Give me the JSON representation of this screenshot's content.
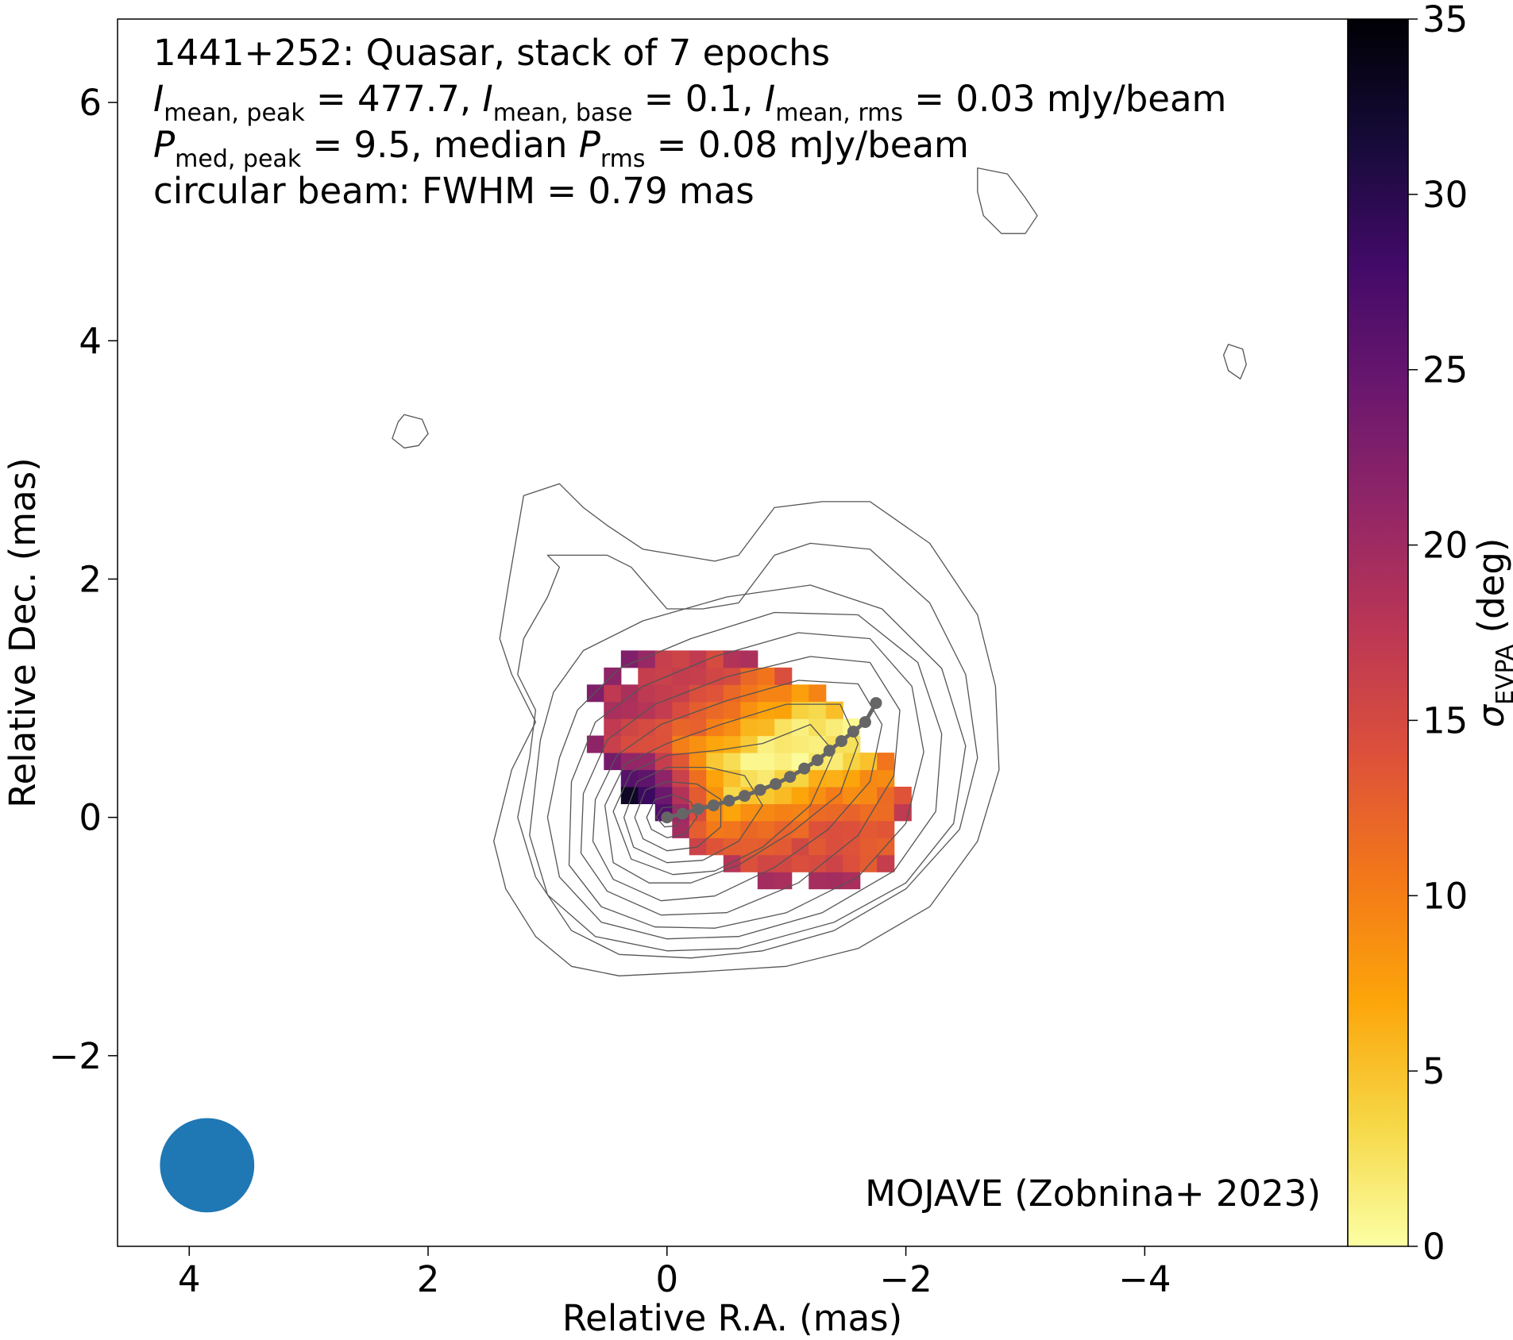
{
  "chart_data": {
    "type": "heatmap",
    "annotation": {
      "line1": "1441+252: Quasar, stack of 7 epochs",
      "line2": {
        "i": "I",
        "sub_peak": "mean, peak",
        "peak_value": " = 477.7, ",
        "sub_base": "mean, base",
        "base_value": " = 0.1, ",
        "sub_rms": "mean, rms",
        "rms_value": " = 0.03 mJy/beam"
      },
      "line3": {
        "p": "P",
        "sub_peak": "med, peak",
        "peak_value": " = 9.5, median ",
        "sub_rms": "rms",
        "rms_value": " = 0.08 mJy/beam"
      },
      "line4": "circular beam: FWHM = 0.79 mas"
    },
    "credit": "MOJAVE (Zobnina+ 2023)",
    "xlabel": "Relative R.A. (mas)",
    "ylabel": "Relative Dec. (mas)",
    "colorbar_label": {
      "symbol": "σ",
      "sub": "EVPA",
      "unit": " (deg)"
    },
    "xlim": [
      4.6,
      -5.7
    ],
    "ylim": [
      -3.6,
      6.7
    ],
    "xticks": [
      {
        "value": 4,
        "label": "4"
      },
      {
        "value": 2,
        "label": "2"
      },
      {
        "value": 0,
        "label": "0"
      },
      {
        "value": -2,
        "label": "−2"
      },
      {
        "value": -4,
        "label": "−4"
      }
    ],
    "yticks": [
      {
        "value": -2,
        "label": "−2"
      },
      {
        "value": 0,
        "label": "0"
      },
      {
        "value": 2,
        "label": "2"
      },
      {
        "value": 4,
        "label": "4"
      },
      {
        "value": 6,
        "label": "6"
      }
    ],
    "colorbar": {
      "colormap": "inferno_r",
      "range": [
        0,
        35
      ],
      "ticks": [
        {
          "value": 0,
          "label": "0"
        },
        {
          "value": 5,
          "label": "5"
        },
        {
          "value": 10,
          "label": "10"
        },
        {
          "value": 15,
          "label": "15"
        },
        {
          "value": 20,
          "label": "20"
        },
        {
          "value": 25,
          "label": "25"
        },
        {
          "value": 30,
          "label": "30"
        },
        {
          "value": 35,
          "label": "35"
        }
      ]
    },
    "beam": {
      "fwhm_mas": 0.79,
      "center": [
        3.85,
        -2.92
      ],
      "color": "#1f77b4"
    },
    "ridgeline": {
      "color": "#666666",
      "points": [
        [
          0.0,
          0.0
        ],
        [
          -0.13,
          0.03
        ],
        [
          -0.26,
          0.07
        ],
        [
          -0.39,
          0.1
        ],
        [
          -0.52,
          0.14
        ],
        [
          -0.65,
          0.18
        ],
        [
          -0.78,
          0.23
        ],
        [
          -0.91,
          0.28
        ],
        [
          -1.03,
          0.34
        ],
        [
          -1.15,
          0.41
        ],
        [
          -1.26,
          0.48
        ],
        [
          -1.36,
          0.56
        ],
        [
          -1.46,
          0.64
        ],
        [
          -1.56,
          0.72
        ],
        [
          -1.66,
          0.8
        ],
        [
          -1.75,
          0.96
        ]
      ]
    },
    "contours_mas": [
      [
        [
          1.2,
          2.7
        ],
        [
          0.9,
          2.8
        ],
        [
          0.7,
          2.6
        ],
        [
          0.5,
          2.45
        ],
        [
          0.2,
          2.25
        ],
        [
          -0.1,
          2.2
        ],
        [
          -0.4,
          2.15
        ],
        [
          -0.6,
          2.2
        ],
        [
          -0.9,
          2.6
        ],
        [
          -1.3,
          2.65
        ],
        [
          -1.7,
          2.65
        ],
        [
          -2.2,
          2.3
        ],
        [
          -2.6,
          1.7
        ],
        [
          -2.75,
          1.1
        ],
        [
          -2.78,
          0.4
        ],
        [
          -2.6,
          -0.2
        ],
        [
          -2.2,
          -0.75
        ],
        [
          -1.6,
          -1.1
        ],
        [
          -1.0,
          -1.25
        ],
        [
          -0.2,
          -1.3
        ],
        [
          0.4,
          -1.33
        ],
        [
          0.8,
          -1.25
        ],
        [
          1.1,
          -1.0
        ],
        [
          1.35,
          -0.6
        ],
        [
          1.45,
          -0.2
        ],
        [
          1.3,
          0.4
        ],
        [
          1.1,
          0.8
        ],
        [
          1.3,
          1.2
        ],
        [
          1.4,
          1.5
        ],
        [
          1.32,
          2.0
        ],
        [
          1.2,
          2.7
        ]
      ],
      [
        [
          1.0,
          2.2
        ],
        [
          0.9,
          2.1
        ],
        [
          1.0,
          1.85
        ],
        [
          1.2,
          1.5
        ],
        [
          1.25,
          1.2
        ],
        [
          1.1,
          0.9
        ],
        [
          1.15,
          0.5
        ],
        [
          1.25,
          0.0
        ],
        [
          1.1,
          -0.5
        ],
        [
          0.8,
          -0.95
        ],
        [
          0.4,
          -1.15
        ],
        [
          -0.2,
          -1.18
        ],
        [
          -0.8,
          -1.12
        ],
        [
          -1.4,
          -0.95
        ],
        [
          -2.0,
          -0.6
        ],
        [
          -2.45,
          -0.1
        ],
        [
          -2.6,
          0.5
        ],
        [
          -2.5,
          1.2
        ],
        [
          -2.2,
          1.8
        ],
        [
          -1.7,
          2.25
        ],
        [
          -1.2,
          2.3
        ],
        [
          -0.9,
          2.2
        ],
        [
          -0.6,
          1.8
        ],
        [
          -0.3,
          1.75
        ],
        [
          0.0,
          1.75
        ],
        [
          0.3,
          2.1
        ],
        [
          0.5,
          2.2
        ],
        [
          1.0,
          2.2
        ]
      ],
      [
        [
          1.06,
          0.65
        ],
        [
          0.95,
          1.05
        ],
        [
          0.7,
          1.4
        ],
        [
          0.2,
          1.65
        ],
        [
          -0.5,
          1.85
        ],
        [
          -1.2,
          1.95
        ],
        [
          -1.8,
          1.75
        ],
        [
          -2.3,
          1.25
        ],
        [
          -2.5,
          0.6
        ],
        [
          -2.4,
          -0.05
        ],
        [
          -2.0,
          -0.55
        ],
        [
          -1.4,
          -0.88
        ],
        [
          -0.6,
          -1.1
        ],
        [
          0.0,
          -1.12
        ],
        [
          0.6,
          -1.0
        ],
        [
          1.0,
          -0.65
        ],
        [
          1.15,
          -0.15
        ],
        [
          1.06,
          0.65
        ]
      ],
      [
        [
          0.9,
          0.5
        ],
        [
          0.75,
          0.9
        ],
        [
          0.4,
          1.25
        ],
        [
          -0.2,
          1.5
        ],
        [
          -0.9,
          1.72
        ],
        [
          -1.6,
          1.7
        ],
        [
          -2.1,
          1.3
        ],
        [
          -2.3,
          0.7
        ],
        [
          -2.25,
          0.05
        ],
        [
          -1.9,
          -0.45
        ],
        [
          -1.3,
          -0.8
        ],
        [
          -0.6,
          -1.0
        ],
        [
          0.0,
          -1.02
        ],
        [
          0.55,
          -0.88
        ],
        [
          0.9,
          -0.5
        ],
        [
          1.0,
          0.0
        ],
        [
          0.9,
          0.5
        ]
      ],
      [
        [
          0.8,
          0.3
        ],
        [
          0.6,
          0.8
        ],
        [
          0.2,
          1.1
        ],
        [
          -0.4,
          1.35
        ],
        [
          -1.1,
          1.55
        ],
        [
          -1.7,
          1.5
        ],
        [
          -2.05,
          1.1
        ],
        [
          -2.15,
          0.55
        ],
        [
          -2.0,
          -0.05
        ],
        [
          -1.6,
          -0.5
        ],
        [
          -1.0,
          -0.8
        ],
        [
          -0.4,
          -0.93
        ],
        [
          0.1,
          -0.92
        ],
        [
          0.55,
          -0.75
        ],
        [
          0.82,
          -0.4
        ],
        [
          0.8,
          0.3
        ]
      ],
      [
        [
          0.7,
          0.2
        ],
        [
          0.5,
          0.65
        ],
        [
          0.1,
          0.95
        ],
        [
          -0.5,
          1.18
        ],
        [
          -1.2,
          1.35
        ],
        [
          -1.7,
          1.3
        ],
        [
          -1.95,
          0.9
        ],
        [
          -1.9,
          0.35
        ],
        [
          -1.6,
          -0.15
        ],
        [
          -1.1,
          -0.55
        ],
        [
          -0.5,
          -0.8
        ],
        [
          0.05,
          -0.82
        ],
        [
          0.5,
          -0.62
        ],
        [
          0.72,
          -0.3
        ],
        [
          0.7,
          0.2
        ]
      ],
      [
        [
          0.6,
          0.15
        ],
        [
          0.42,
          0.52
        ],
        [
          0.05,
          0.78
        ],
        [
          -0.5,
          0.98
        ],
        [
          -1.1,
          1.15
        ],
        [
          -1.6,
          1.12
        ],
        [
          -1.8,
          0.78
        ],
        [
          -1.7,
          0.3
        ],
        [
          -1.35,
          -0.1
        ],
        [
          -0.9,
          -0.42
        ],
        [
          -0.4,
          -0.66
        ],
        [
          0.05,
          -0.7
        ],
        [
          0.45,
          -0.52
        ],
        [
          0.62,
          -0.2
        ],
        [
          0.6,
          0.15
        ]
      ],
      [
        [
          0.52,
          0.1
        ],
        [
          0.35,
          0.45
        ],
        [
          0.0,
          0.62
        ],
        [
          -0.45,
          0.78
        ],
        [
          -1.0,
          0.95
        ],
        [
          -1.45,
          0.95
        ],
        [
          -1.6,
          0.62
        ],
        [
          -1.45,
          0.2
        ],
        [
          -1.05,
          -0.12
        ],
        [
          -0.6,
          -0.4
        ],
        [
          -0.2,
          -0.55
        ],
        [
          0.15,
          -0.55
        ],
        [
          0.45,
          -0.38
        ],
        [
          0.52,
          0.1
        ]
      ],
      [
        [
          0.45,
          0.05
        ],
        [
          0.3,
          0.38
        ],
        [
          0.0,
          0.52
        ],
        [
          -0.4,
          0.56
        ],
        [
          -0.8,
          0.62
        ],
        [
          -1.2,
          0.78
        ],
        [
          -1.4,
          0.55
        ],
        [
          -1.2,
          0.1
        ],
        [
          -0.8,
          -0.25
        ],
        [
          -0.4,
          -0.45
        ],
        [
          -0.05,
          -0.48
        ],
        [
          0.3,
          -0.35
        ],
        [
          0.45,
          0.05
        ]
      ],
      [
        [
          0.36,
          0.0
        ],
        [
          0.25,
          0.3
        ],
        [
          0.0,
          0.42
        ],
        [
          -0.35,
          0.42
        ],
        [
          -0.65,
          0.35
        ],
        [
          -0.8,
          0.1
        ],
        [
          -0.6,
          -0.2
        ],
        [
          -0.3,
          -0.36
        ],
        [
          0.0,
          -0.38
        ],
        [
          0.28,
          -0.25
        ],
        [
          0.36,
          0.0
        ]
      ],
      [
        [
          0.27,
          0.0
        ],
        [
          0.18,
          0.23
        ],
        [
          0.0,
          0.3
        ],
        [
          -0.25,
          0.28
        ],
        [
          -0.45,
          0.15
        ],
        [
          -0.45,
          -0.08
        ],
        [
          -0.25,
          -0.25
        ],
        [
          0.0,
          -0.28
        ],
        [
          0.2,
          -0.18
        ],
        [
          0.27,
          0.0
        ]
      ],
      [
        [
          0.17,
          0.0
        ],
        [
          0.1,
          0.15
        ],
        [
          -0.05,
          0.19
        ],
        [
          -0.2,
          0.13
        ],
        [
          -0.25,
          0.0
        ],
        [
          -0.15,
          -0.14
        ],
        [
          0.0,
          -0.17
        ],
        [
          0.13,
          -0.1
        ],
        [
          0.17,
          0.0
        ]
      ],
      [
        [
          0.09,
          0.0
        ],
        [
          0.04,
          0.08
        ],
        [
          -0.06,
          0.09
        ],
        [
          -0.12,
          0.02
        ],
        [
          -0.08,
          -0.07
        ],
        [
          0.02,
          -0.08
        ],
        [
          0.09,
          0.0
        ]
      ],
      [
        [
          -2.6,
          5.45
        ],
        [
          -2.85,
          5.4
        ],
        [
          -3.0,
          5.2
        ],
        [
          -3.1,
          5.05
        ],
        [
          -3.0,
          4.9
        ],
        [
          -2.8,
          4.9
        ],
        [
          -2.65,
          5.05
        ],
        [
          -2.6,
          5.25
        ],
        [
          -2.6,
          5.45
        ]
      ],
      [
        [
          2.2,
          3.38
        ],
        [
          2.05,
          3.34
        ],
        [
          2.0,
          3.22
        ],
        [
          2.08,
          3.12
        ],
        [
          2.2,
          3.1
        ],
        [
          2.3,
          3.18
        ],
        [
          2.25,
          3.32
        ],
        [
          2.2,
          3.38
        ]
      ],
      [
        [
          -4.7,
          3.97
        ],
        [
          -4.82,
          3.93
        ],
        [
          -4.85,
          3.8
        ],
        [
          -4.8,
          3.68
        ],
        [
          -4.7,
          3.75
        ],
        [
          -4.66,
          3.88
        ],
        [
          -4.7,
          3.97
        ]
      ]
    ],
    "evpa_model": {
      "cell_size_mas": 0.1429,
      "core_center": [
        0.28,
        0.05
      ],
      "core_peak": 31,
      "core_sigma": [
        0.42,
        0.48
      ],
      "ridge_start": [
        0.25,
        0.0
      ],
      "ridge_end": [
        -1.8,
        0.9
      ],
      "ridge_base": 13,
      "ridge_spread": 0.55,
      "mask_center": [
        -0.7,
        0.42
      ],
      "mask_radii": [
        1.45,
        0.85
      ],
      "mask_rotation_deg": 28,
      "ragged_edge_fraction": 0.12
    }
  }
}
